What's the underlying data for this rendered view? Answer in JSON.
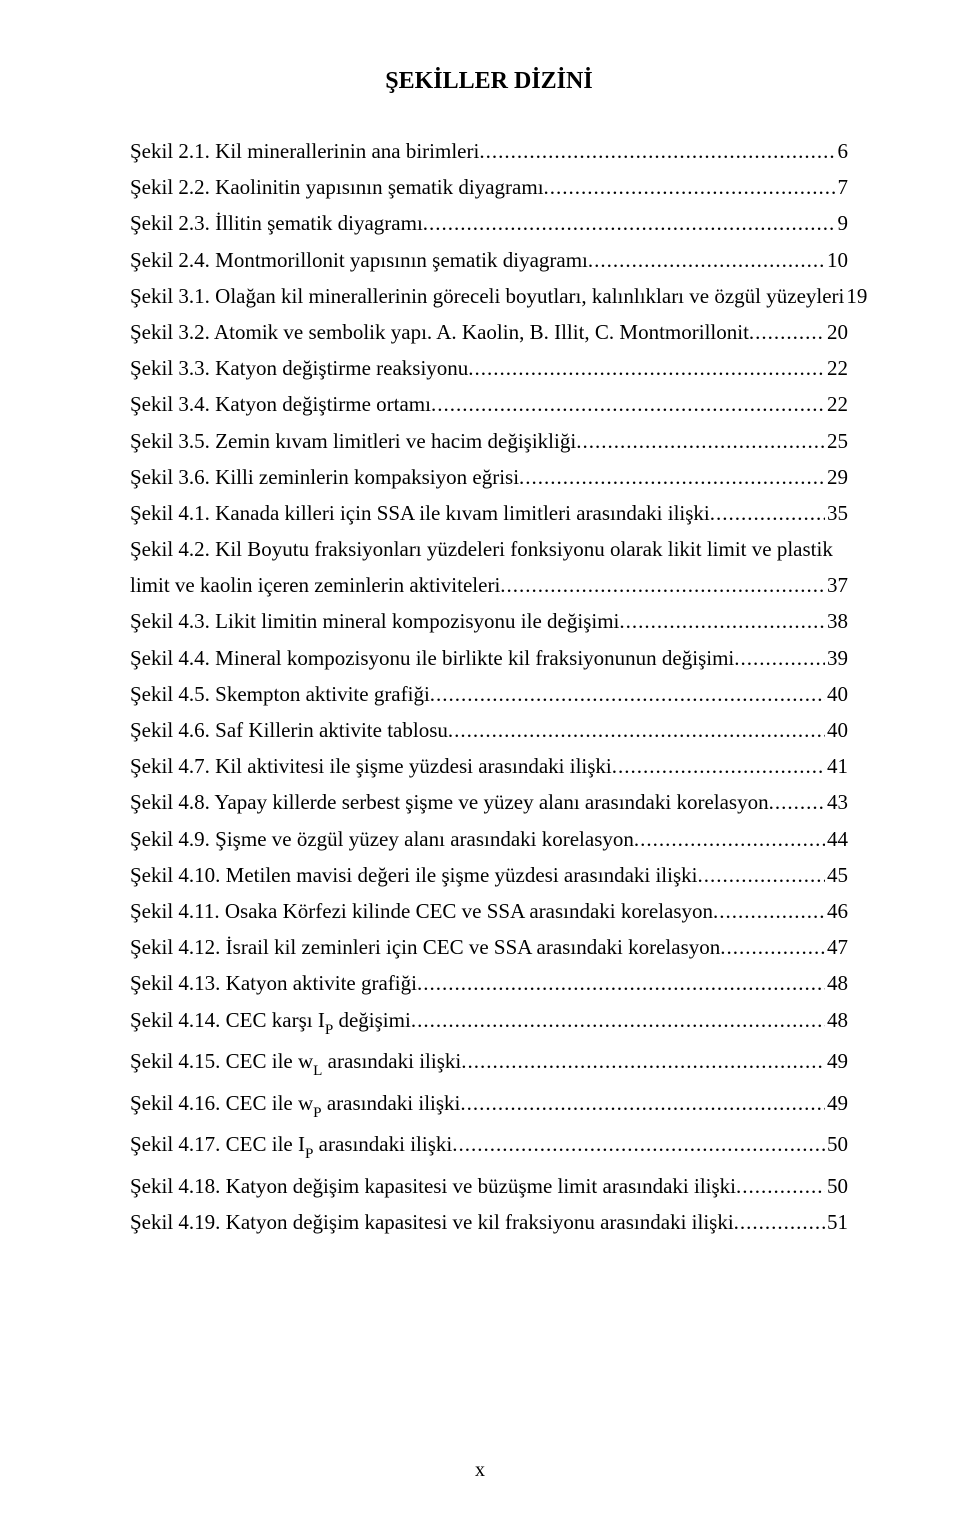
{
  "title": "ŞEKİLLER DİZİNİ",
  "pageNumber": "x",
  "entries": [
    {
      "label": "Şekil 2.1. Kil minerallerinin ana birimleri",
      "page": "6"
    },
    {
      "label": "Şekil 2.2. Kaolinitin yapısının şematik diyagramı",
      "page": "7"
    },
    {
      "label": "Şekil 2.3. İllitin şematik diyagramı",
      "page": "9"
    },
    {
      "label": "Şekil 2.4. Montmorillonit yapısının şematik diyagramı",
      "page": "10"
    },
    {
      "label": "Şekil 3.1. Olağan kil minerallerinin göreceli boyutları, kalınlıkları ve özgül yüzeyleri",
      "page": "19"
    },
    {
      "label": "Şekil 3.2. Atomik ve sembolik yapı. A. Kaolin, B. Illit, C. Montmorillonit",
      "page": "20"
    },
    {
      "label": "Şekil 3.3. Katyon değiştirme reaksiyonu",
      "page": "22"
    },
    {
      "label": "Şekil 3.4. Katyon değiştirme ortamı",
      "page": "22"
    },
    {
      "label": "Şekil 3.5. Zemin kıvam limitleri ve hacim değişikliği",
      "page": "25"
    },
    {
      "label": "Şekil 3.6. Killi zeminlerin kompaksiyon eğrisi",
      "page": "29"
    },
    {
      "label": "Şekil 4.1. Kanada killeri için SSA ile kıvam limitleri arasındaki ilişki",
      "page": "35"
    },
    {
      "label": "Şekil 4.2. Kil Boyutu fraksiyonları yüzdeleri fonksiyonu olarak likit limit ve plastik limit ve kaolin içeren zeminlerin aktiviteleri",
      "page": "37"
    },
    {
      "label": "Şekil 4.3. Likit limitin mineral kompozisyonu ile değişimi",
      "page": "38"
    },
    {
      "label": "Şekil 4.4. Mineral kompozisyonu ile birlikte kil fraksiyonunun değişimi",
      "page": "39"
    },
    {
      "label": "Şekil 4.5. Skempton aktivite grafiği",
      "page": "40"
    },
    {
      "label": "Şekil 4.6. Saf Killerin aktivite tablosu",
      "page": "40"
    },
    {
      "label": "Şekil 4.7. Kil aktivitesi ile şişme yüzdesi arasındaki ilişki",
      "page": "41"
    },
    {
      "label": "Şekil 4.8. Yapay killerde serbest şişme ve yüzey alanı arasındaki korelasyon",
      "page": "43"
    },
    {
      "label": "Şekil 4.9. Şişme ve özgül yüzey alanı arasındaki korelasyon",
      "page": "44"
    },
    {
      "label": "Şekil 4.10. Metilen mavisi değeri ile şişme yüzdesi arasındaki ilişki",
      "page": "45"
    },
    {
      "label": "Şekil 4.11. Osaka Körfezi kilinde CEC ve SSA arasındaki korelasyon",
      "page": "46"
    },
    {
      "label": "Şekil 4.12. İsrail kil zeminleri için CEC ve SSA arasındaki korelasyon",
      "page": "47"
    },
    {
      "label": "Şekil 4.13. Katyon aktivite grafiği",
      "page": "48"
    },
    {
      "label": "Şekil 4.14. CEC karşı I<sub>P</sub> değişimi",
      "page": "48"
    },
    {
      "label": "Şekil 4.15. CEC ile w<sub>L</sub> arasındaki ilişki",
      "page": "49"
    },
    {
      "label": "Şekil 4.16. CEC ile w<sub>P</sub> arasındaki ilişki",
      "page": "49"
    },
    {
      "label": "Şekil 4.17. CEC ile I<sub>P</sub> arasındaki ilişki",
      "page": "50"
    },
    {
      "label": "Şekil 4.18. Katyon değişim kapasitesi ve büzüşme limit arasındaki ilişki",
      "page": "50"
    },
    {
      "label": "Şekil 4.19. Katyon değişim kapasitesi ve kil fraksiyonu arasındaki ilişki",
      "page": "51"
    }
  ],
  "layout": {
    "specialEntries": {
      "4": {
        "twoLine": true,
        "firstLine": "Şekil 3.1. Olağan kil minerallerinin göreceli boyutları, kalınlıkları ve özgül yüzeyleri",
        "secondPrefix": "",
        "trailing": " 19"
      },
      "11": {
        "twoLine": true,
        "firstLine": "Şekil 4.2. Kil Boyutu fraksiyonları yüzdeleri fonksiyonu olarak likit limit ve plastik",
        "secondPrefix": "limit ve kaolin içeren zeminlerin aktiviteleri",
        "trailing": "37"
      }
    }
  }
}
